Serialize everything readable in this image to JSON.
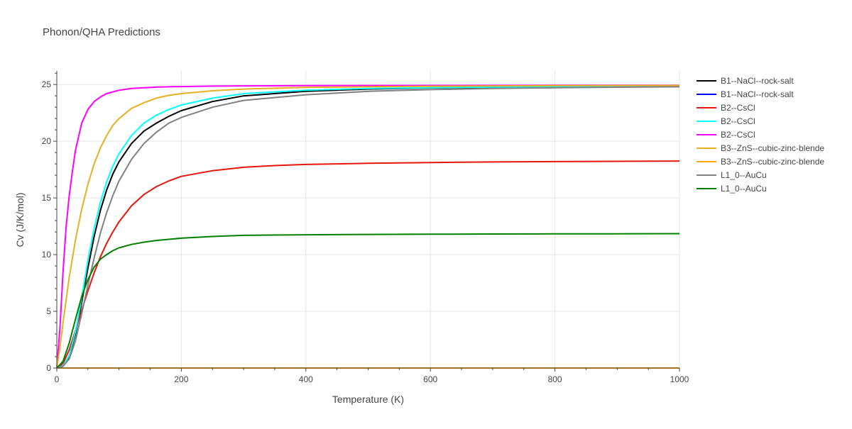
{
  "chart_data": {
    "type": "line",
    "title": "Phonon/QHA Predictions",
    "xlabel": "Temperature (K)",
    "ylabel": "Cv (J/K/mol)",
    "xlim": [
      0,
      1000
    ],
    "ylim": [
      0,
      26.2
    ],
    "xticks": [
      0,
      200,
      400,
      600,
      800,
      1000
    ],
    "yticks": [
      0,
      5,
      10,
      15,
      20,
      25
    ],
    "grid": true,
    "legend_position": "top-right",
    "series": [
      {
        "name": "B1--NaCl--rock-salt",
        "color": "#000000",
        "x": [
          0,
          10,
          20,
          30,
          40,
          50,
          60,
          70,
          80,
          90,
          100,
          120,
          140,
          160,
          180,
          200,
          250,
          300,
          400,
          500,
          600,
          700,
          800,
          900,
          1000
        ],
        "y": [
          0,
          0.2,
          1.0,
          3.0,
          5.8,
          8.8,
          11.6,
          13.9,
          15.7,
          17.1,
          18.2,
          19.8,
          20.9,
          21.6,
          22.2,
          22.7,
          23.5,
          24.0,
          24.4,
          24.6,
          24.7,
          24.75,
          24.8,
          24.82,
          24.85
        ]
      },
      {
        "name": "B1--NaCl--rock-salt",
        "color": "#0000ff",
        "x": [
          0,
          200,
          400,
          600,
          800,
          1000
        ],
        "y": [
          0,
          0,
          0,
          0,
          0,
          0
        ]
      },
      {
        "name": "B2--CsCl",
        "color": "#e8150d",
        "x": [
          0,
          10,
          20,
          30,
          40,
          50,
          60,
          70,
          80,
          90,
          100,
          120,
          140,
          160,
          180,
          200,
          250,
          300,
          350,
          400,
          500,
          600,
          700,
          800,
          900,
          1000
        ],
        "y": [
          0,
          0.4,
          1.6,
          3.3,
          5.1,
          6.8,
          8.4,
          9.8,
          11.0,
          12.0,
          12.9,
          14.3,
          15.3,
          16.0,
          16.5,
          16.9,
          17.4,
          17.7,
          17.85,
          17.95,
          18.05,
          18.12,
          18.17,
          18.2,
          18.23,
          18.25
        ]
      },
      {
        "name": "B2--CsCl",
        "color": "#00ffff",
        "x": [
          0,
          10,
          20,
          30,
          40,
          50,
          60,
          70,
          80,
          90,
          100,
          120,
          140,
          160,
          180,
          200,
          250,
          300,
          400,
          500,
          600,
          700,
          800,
          900,
          1000
        ],
        "y": [
          0,
          0.2,
          1.1,
          3.2,
          6.2,
          9.5,
          12.3,
          14.6,
          16.4,
          17.8,
          18.9,
          20.5,
          21.6,
          22.3,
          22.8,
          23.2,
          23.8,
          24.2,
          24.5,
          24.65,
          24.72,
          24.77,
          24.8,
          24.83,
          24.85
        ]
      },
      {
        "name": "B2--CsCl",
        "color": "#ff00ff",
        "x": [
          0,
          5,
          10,
          15,
          20,
          25,
          30,
          40,
          50,
          60,
          70,
          80,
          90,
          100,
          120,
          140,
          160,
          180,
          200,
          250,
          300,
          400,
          600,
          800,
          1000
        ],
        "y": [
          0,
          3.5,
          8.5,
          12.5,
          15.2,
          17.3,
          19.2,
          21.6,
          22.8,
          23.5,
          23.9,
          24.2,
          24.35,
          24.5,
          24.65,
          24.72,
          24.77,
          24.8,
          24.82,
          24.86,
          24.88,
          24.9,
          24.92,
          24.93,
          24.94
        ]
      },
      {
        "name": "B3--ZnS--cubic-zinc-blende",
        "color": "#e6b020",
        "x": [
          0,
          5,
          10,
          20,
          30,
          40,
          50,
          60,
          70,
          80,
          90,
          100,
          120,
          140,
          160,
          180,
          200,
          250,
          300,
          400,
          600,
          800,
          1000
        ],
        "y": [
          0,
          1.8,
          4.0,
          8.0,
          11.3,
          14.0,
          16.2,
          18.0,
          19.4,
          20.5,
          21.4,
          22.0,
          22.9,
          23.4,
          23.8,
          24.05,
          24.2,
          24.45,
          24.6,
          24.75,
          24.85,
          24.9,
          24.92
        ]
      },
      {
        "name": "B3--ZnS--cubic-zinc-blende",
        "color": "#ffa500",
        "x": [
          0,
          200,
          400,
          600,
          800,
          1000
        ],
        "y": [
          0,
          0,
          0,
          0,
          0,
          0
        ]
      },
      {
        "name": "L1_0--AuCu",
        "color": "#808080",
        "x": [
          0,
          10,
          20,
          30,
          40,
          50,
          60,
          70,
          80,
          90,
          100,
          120,
          140,
          160,
          180,
          200,
          250,
          300,
          400,
          500,
          600,
          700,
          800,
          900,
          1000
        ],
        "y": [
          0,
          0.15,
          0.8,
          2.4,
          4.8,
          7.3,
          9.7,
          11.9,
          13.7,
          15.2,
          16.5,
          18.4,
          19.8,
          20.8,
          21.6,
          22.1,
          23.0,
          23.6,
          24.1,
          24.4,
          24.55,
          24.65,
          24.72,
          24.76,
          24.8
        ]
      },
      {
        "name": "L1_0--AuCu",
        "color": "#008000",
        "x": [
          0,
          10,
          20,
          30,
          40,
          50,
          60,
          70,
          80,
          90,
          100,
          120,
          140,
          160,
          180,
          200,
          250,
          300,
          400,
          500,
          600,
          700,
          800,
          900,
          1000
        ],
        "y": [
          0,
          0.6,
          2.2,
          4.3,
          6.3,
          7.8,
          8.9,
          9.6,
          10.0,
          10.35,
          10.6,
          10.9,
          11.1,
          11.25,
          11.35,
          11.45,
          11.6,
          11.7,
          11.75,
          11.78,
          11.8,
          11.82,
          11.83,
          11.84,
          11.85
        ]
      }
    ]
  }
}
